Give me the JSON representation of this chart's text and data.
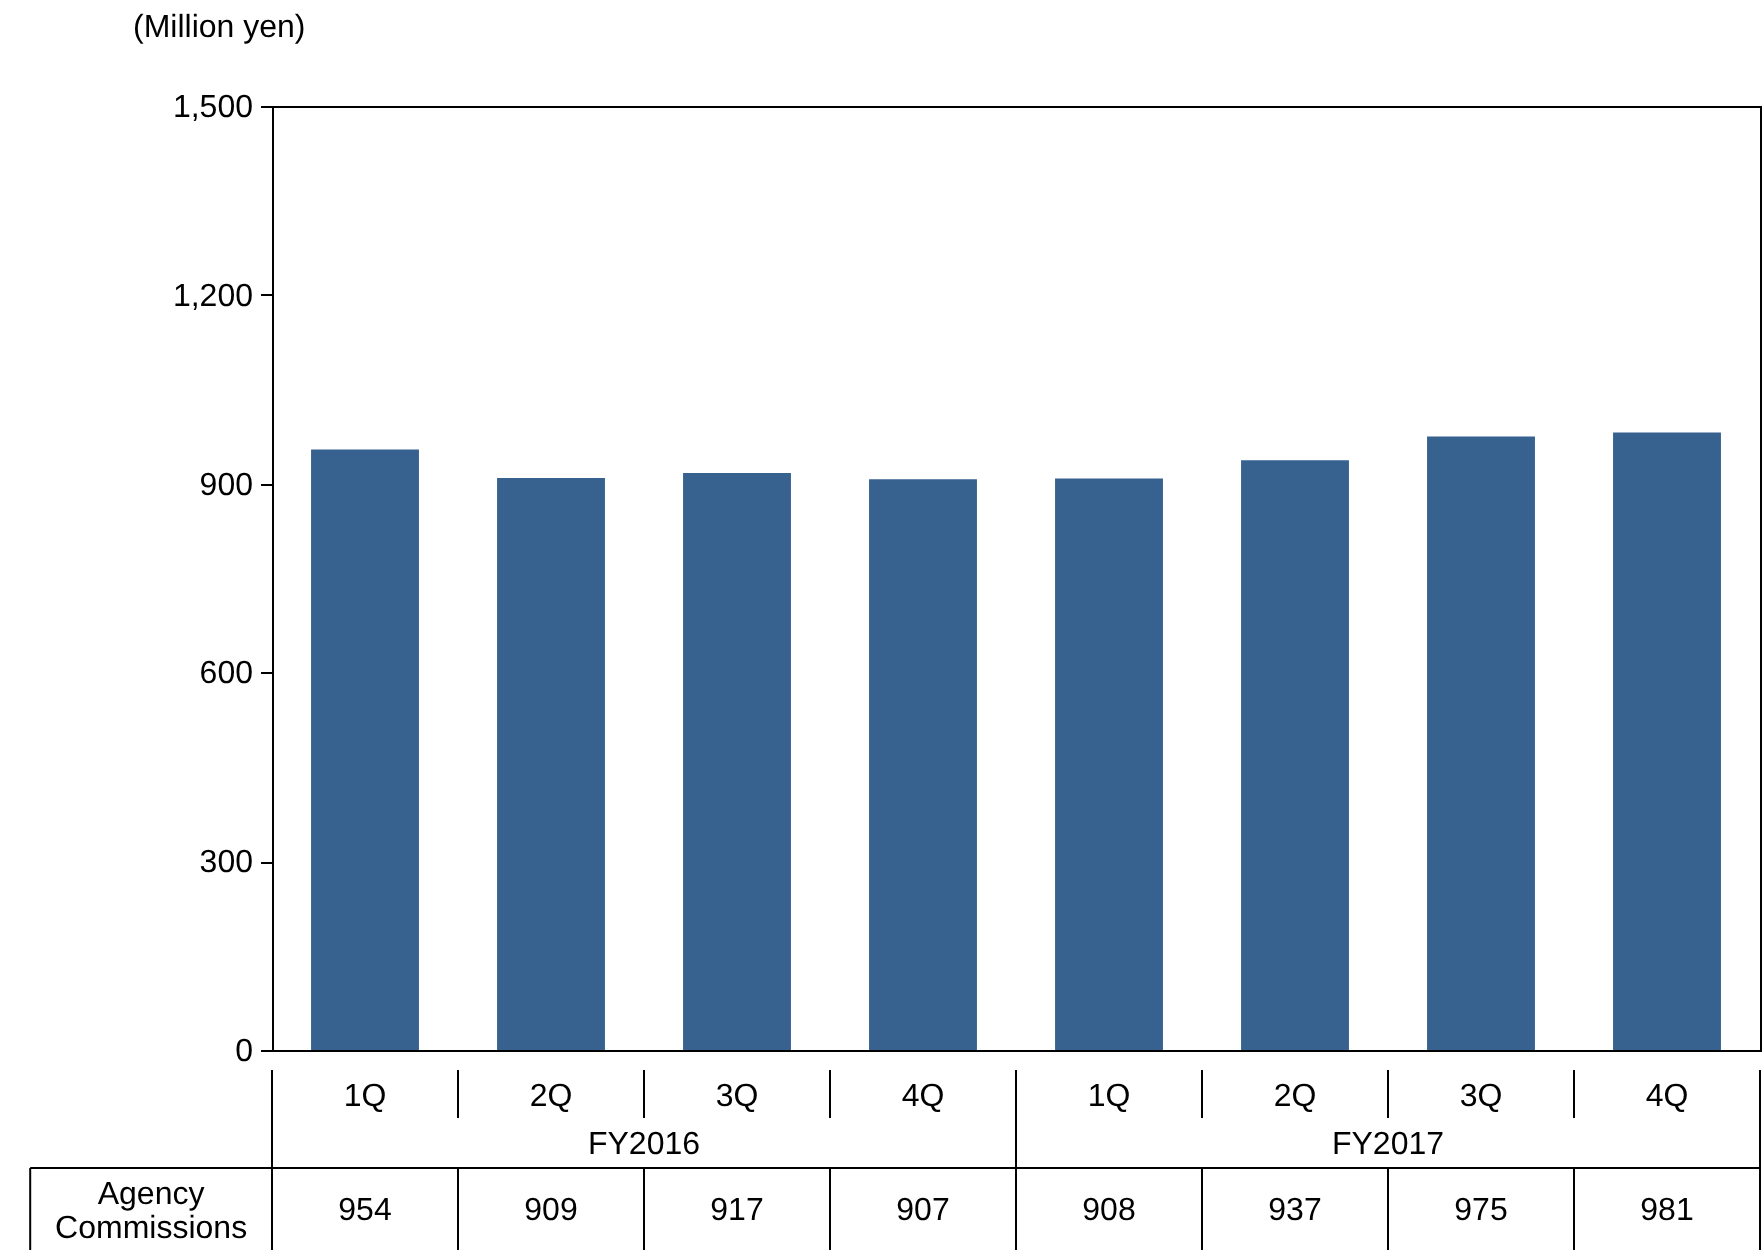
{
  "chart_data": {
    "type": "bar",
    "ylabel": "(Million yen)",
    "categories": [
      "1Q",
      "2Q",
      "3Q",
      "4Q",
      "1Q",
      "2Q",
      "3Q",
      "4Q"
    ],
    "series": [
      {
        "name": "Agency Commissions",
        "color": "#37618f",
        "values": [
          954,
          909,
          917,
          907,
          908,
          937,
          975,
          981
        ]
      }
    ],
    "ylim": [
      0,
      1500
    ],
    "yticks": [
      0,
      300,
      600,
      900,
      {
        "value": 1200,
        "label": "1,200"
      },
      {
        "value": 1500,
        "label": "1,500"
      }
    ],
    "grid": false,
    "legend": false,
    "data_labels": true,
    "annotations": [
      "FY2016",
      "FY2017"
    ]
  }
}
